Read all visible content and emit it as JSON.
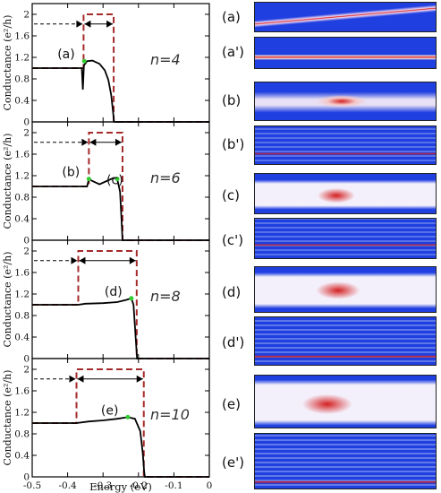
{
  "chart_data": {
    "type": "line",
    "xlabel": "Energy (eV)",
    "ylabel": "Conductance (e²/h)",
    "xlim": [
      -0.5,
      0
    ],
    "ylim": [
      0,
      2.2
    ],
    "x_ticks": [
      "-0.5",
      "-0.4",
      "-0.3",
      "-0.2",
      "-0.1",
      "0"
    ],
    "y_ticks": [
      "0",
      "0.4",
      "0.8",
      "1.2",
      "1.6",
      "2"
    ],
    "panels": [
      {
        "label": "n=4",
        "point_label": "(a)",
        "point": [
          -0.353,
          1.13
        ],
        "arrow_y": 1.82,
        "step_edges": [
          -0.355,
          -0.27
        ],
        "conductance": [
          [
            -0.5,
            1.0
          ],
          [
            -0.36,
            1.0
          ],
          [
            -0.357,
            0.6
          ],
          [
            -0.354,
            1.05
          ],
          [
            -0.345,
            1.13
          ],
          [
            -0.33,
            1.14
          ],
          [
            -0.31,
            1.08
          ],
          [
            -0.295,
            0.96
          ],
          [
            -0.285,
            0.78
          ],
          [
            -0.277,
            0.5
          ],
          [
            -0.272,
            0.2
          ],
          [
            -0.269,
            0.0
          ],
          [
            0,
            0
          ]
        ]
      },
      {
        "label": "n=6",
        "point_label": "(b)",
        "point_label_2": "(c)",
        "point": [
          -0.34,
          1.14
        ],
        "point_2": [
          -0.26,
          1.14
        ],
        "arrow_y": 1.82,
        "step_edges": [
          -0.34,
          -0.245
        ],
        "conductance": [
          [
            -0.5,
            1.0
          ],
          [
            -0.345,
            1.0
          ],
          [
            -0.34,
            1.14
          ],
          [
            -0.33,
            1.1
          ],
          [
            -0.31,
            1.04
          ],
          [
            -0.29,
            1.1
          ],
          [
            -0.27,
            1.16
          ],
          [
            -0.26,
            1.14
          ],
          [
            -0.252,
            0.9
          ],
          [
            -0.248,
            0.4
          ],
          [
            -0.245,
            0.0
          ],
          [
            0,
            0
          ]
        ]
      },
      {
        "label": "n=8",
        "point_label": "(d)",
        "point": [
          -0.22,
          1.12
        ],
        "arrow_y": 1.82,
        "step_edges": [
          -0.37,
          -0.205
        ],
        "conductance": [
          [
            -0.5,
            1.0
          ],
          [
            -0.37,
            1.0
          ],
          [
            -0.35,
            1.02
          ],
          [
            -0.3,
            1.03
          ],
          [
            -0.26,
            1.05
          ],
          [
            -0.235,
            1.09
          ],
          [
            -0.22,
            1.12
          ],
          [
            -0.214,
            1.0
          ],
          [
            -0.21,
            0.6
          ],
          [
            -0.206,
            0.2
          ],
          [
            -0.204,
            0.0
          ],
          [
            0,
            0
          ]
        ]
      },
      {
        "label": "n=10",
        "point_label": "(e)",
        "point": [
          -0.23,
          1.11
        ],
        "arrow_y": 1.82,
        "step_edges": [
          -0.375,
          -0.185
        ],
        "conductance": [
          [
            -0.5,
            1.0
          ],
          [
            -0.375,
            1.0
          ],
          [
            -0.34,
            1.03
          ],
          [
            -0.3,
            1.05
          ],
          [
            -0.26,
            1.08
          ],
          [
            -0.23,
            1.11
          ],
          [
            -0.21,
            1.08
          ],
          [
            -0.195,
            0.85
          ],
          [
            -0.188,
            0.45
          ],
          [
            -0.184,
            0.1
          ],
          [
            -0.182,
            0.0
          ],
          [
            0,
            0
          ]
        ]
      }
    ]
  },
  "maps": [
    {
      "label": "(a)"
    },
    {
      "label": "(a')"
    },
    {
      "label": "(b)"
    },
    {
      "label": "(b')"
    },
    {
      "label": "(c)"
    },
    {
      "label": "(c')"
    },
    {
      "label": "(d)"
    },
    {
      "label": "(d')"
    },
    {
      "label": "(e)"
    },
    {
      "label": "(e')"
    }
  ],
  "colors": {
    "curve": "#000000",
    "step": "#a52a2a",
    "point": "#33cc33",
    "map_bg": "#1f3fe0",
    "map_hot": "#d42020"
  }
}
